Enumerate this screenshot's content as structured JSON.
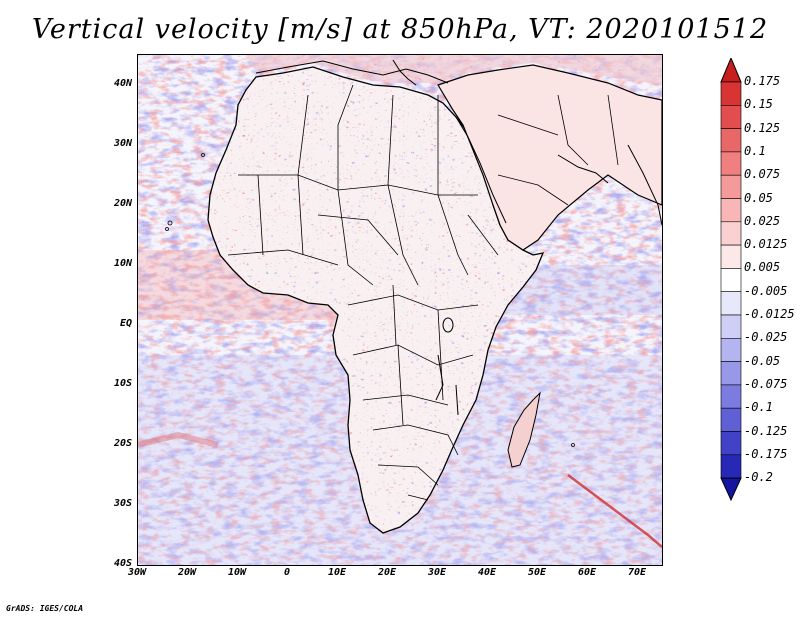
{
  "title": "Vertical velocity [m/s] at 850hPa, VT: 2020101512",
  "footer": "GrADS: IGES/COLA",
  "lat_labels": [
    "40N",
    "30N",
    "20N",
    "10N",
    "EQ",
    "10S",
    "20S",
    "30S",
    "40S"
  ],
  "lon_labels": [
    "30W",
    "20W",
    "10W",
    "0",
    "10E",
    "20E",
    "30E",
    "40E",
    "50E",
    "60E",
    "70E"
  ],
  "colorbar": {
    "labels": [
      "0.175",
      "0.15",
      "0.125",
      "0.1",
      "0.075",
      "0.05",
      "0.025",
      "0.0125",
      "0.005",
      "-0.005",
      "-0.0125",
      "-0.025",
      "-0.05",
      "-0.075",
      "-0.1",
      "-0.125",
      "-0.175",
      "-0.2"
    ],
    "colors": [
      "#c81e1e",
      "#d83434",
      "#e24d4d",
      "#ea6767",
      "#f08080",
      "#f49a9a",
      "#f8b6b6",
      "#fbd0d0",
      "#fde8e8",
      "#ffffff",
      "#e8e8fb",
      "#cfcff6",
      "#b4b4f0",
      "#9898e8",
      "#7c7ce0",
      "#5f5fd6",
      "#4242c8",
      "#2828b6",
      "#1414a0"
    ]
  },
  "colors": {
    "positive": "#e05050",
    "negative": "#5050d8",
    "land_outline": "#000000"
  }
}
